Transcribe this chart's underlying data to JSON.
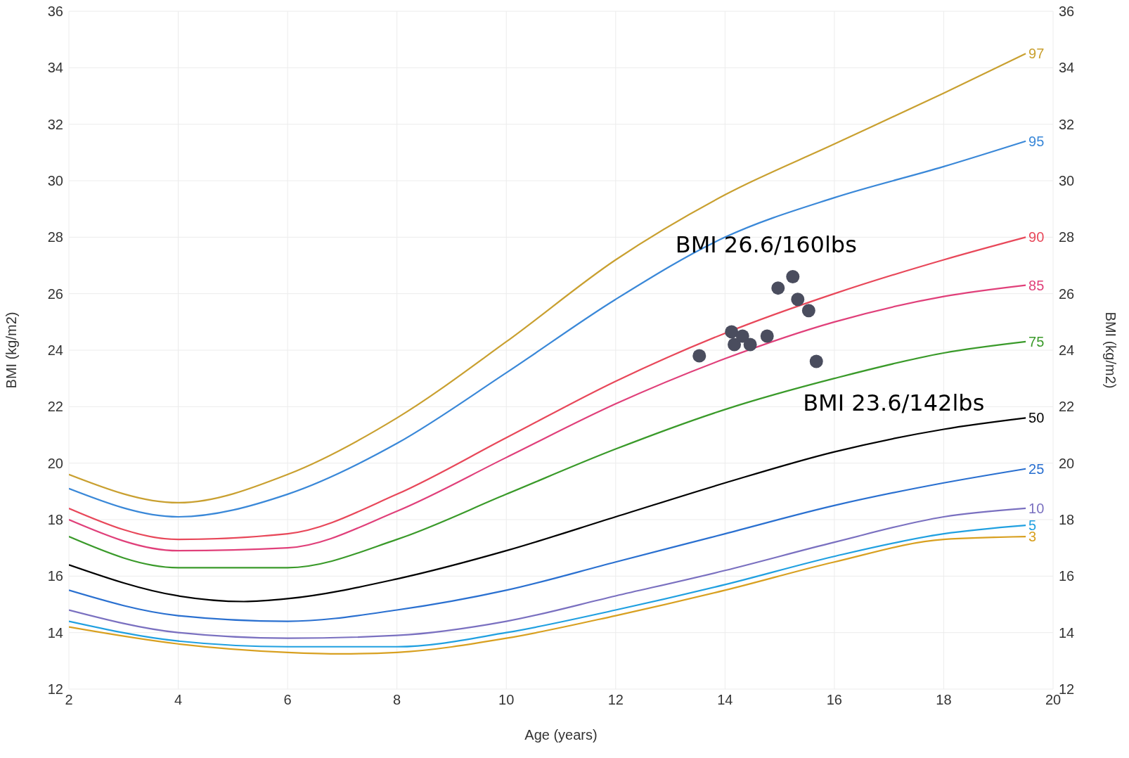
{
  "chart_data": {
    "type": "line",
    "xlabel": "Age (years)",
    "ylabel": "BMI (kg/m2)",
    "y2label": "BMI (kg/m2)",
    "xlim": [
      2,
      20
    ],
    "xticks": [
      2,
      4,
      6,
      8,
      10,
      12,
      14,
      16,
      18,
      20
    ],
    "ylim": [
      12,
      36
    ],
    "yticks": [
      12,
      14,
      16,
      18,
      20,
      22,
      24,
      26,
      28,
      30,
      32,
      34,
      36
    ],
    "y2lim": [
      12,
      36
    ],
    "y2ticks": [
      12,
      14,
      16,
      18,
      20,
      22,
      24,
      26,
      28,
      30,
      32,
      34,
      36
    ],
    "grid": true,
    "marker": "none",
    "line_style": "solid",
    "series": [
      {
        "name": "97",
        "color": "#c9a030",
        "x": [
          2,
          4,
          6,
          8,
          10,
          12,
          14,
          16,
          18,
          19.5
        ],
        "values": [
          19.6,
          18.6,
          19.6,
          21.6,
          24.3,
          27.2,
          29.5,
          31.3,
          33.1,
          34.5
        ]
      },
      {
        "name": "95",
        "color": "#3a88d8",
        "x": [
          2,
          4,
          6,
          8,
          10,
          12,
          14,
          16,
          18,
          19.5
        ],
        "values": [
          19.1,
          18.1,
          18.9,
          20.7,
          23.2,
          25.8,
          28.0,
          29.4,
          30.5,
          31.4
        ]
      },
      {
        "name": "90",
        "color": "#e8485a",
        "x": [
          2,
          4,
          6,
          8,
          10,
          12,
          14,
          16,
          18,
          19.5
        ],
        "values": [
          18.4,
          17.3,
          17.5,
          18.9,
          20.9,
          22.9,
          24.6,
          26.0,
          27.2,
          28.0
        ]
      },
      {
        "name": "85",
        "color": "#e0407a",
        "x": [
          2,
          4,
          6,
          8,
          10,
          12,
          14,
          16,
          18,
          19.5
        ],
        "values": [
          18.0,
          16.9,
          17.0,
          18.3,
          20.2,
          22.1,
          23.7,
          25.0,
          25.9,
          26.3
        ]
      },
      {
        "name": "75",
        "color": "#3a9a2a",
        "x": [
          2,
          4,
          6,
          8,
          10,
          12,
          14,
          16,
          18,
          19.5
        ],
        "values": [
          17.4,
          16.3,
          16.3,
          17.3,
          18.9,
          20.5,
          21.9,
          23.0,
          23.9,
          24.3
        ]
      },
      {
        "name": "50",
        "color": "#000000",
        "x": [
          2,
          4,
          5.2,
          6,
          8,
          10,
          12,
          14,
          16,
          18,
          19.5
        ],
        "values": [
          16.4,
          15.3,
          15.1,
          15.2,
          15.9,
          16.9,
          18.1,
          19.3,
          20.4,
          21.2,
          21.6
        ]
      },
      {
        "name": "25",
        "color": "#2a70d0",
        "x": [
          2,
          4,
          6,
          8,
          10,
          12,
          14,
          16,
          18,
          19.5
        ],
        "values": [
          15.5,
          14.6,
          14.4,
          14.8,
          15.5,
          16.5,
          17.5,
          18.5,
          19.3,
          19.8
        ]
      },
      {
        "name": "10",
        "color": "#7a70c0",
        "x": [
          2,
          4,
          6,
          8,
          10,
          12,
          14,
          16,
          18,
          19.5
        ],
        "values": [
          14.8,
          14.0,
          13.8,
          13.9,
          14.4,
          15.3,
          16.2,
          17.2,
          18.1,
          18.4
        ]
      },
      {
        "name": "5",
        "color": "#20a0e0",
        "x": [
          2,
          4,
          6,
          8,
          10,
          12,
          14,
          16,
          18,
          19.5
        ],
        "values": [
          14.4,
          13.7,
          13.5,
          13.5,
          14.0,
          14.8,
          15.7,
          16.7,
          17.5,
          17.8
        ]
      },
      {
        "name": "3",
        "color": "#d8a020",
        "x": [
          2,
          4,
          6,
          7,
          8,
          10,
          12,
          14,
          16,
          18,
          19.5
        ],
        "values": [
          14.2,
          13.6,
          13.3,
          13.25,
          13.3,
          13.8,
          14.6,
          15.5,
          16.5,
          17.3,
          17.4
        ]
      },
      {
        "type": "scatter",
        "color": "#4a4d5e",
        "marker": "circle",
        "x": [
          13.53,
          14.12,
          14.17,
          14.32,
          14.46,
          14.77,
          14.97,
          15.24,
          15.33,
          15.53,
          15.67
        ],
        "values": [
          23.8,
          24.65,
          24.2,
          24.5,
          24.2,
          24.5,
          26.2,
          26.6,
          25.8,
          25.4,
          23.6
        ]
      }
    ],
    "annotations": [
      {
        "text": "BMI 26.6/160lbs",
        "x": 15.24,
        "y": 26.6
      },
      {
        "text": "BMI 23.6/142lbs",
        "x": 15.67,
        "y": 23.6
      }
    ]
  }
}
